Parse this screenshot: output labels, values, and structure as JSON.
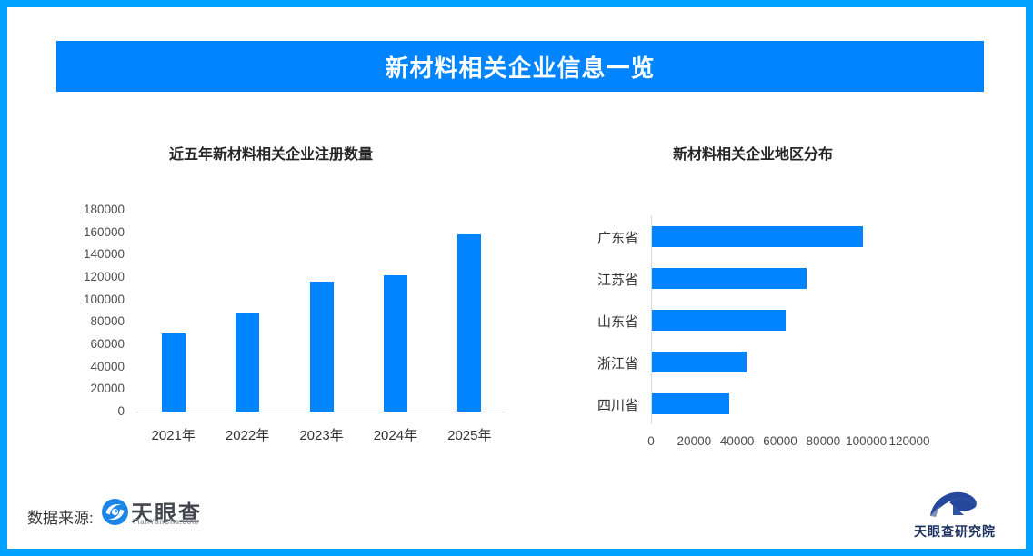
{
  "header": {
    "title": "新材料相关企业信息一览"
  },
  "footer": {
    "source_label": "数据来源:",
    "tianyancha": {
      "name": "天眼查",
      "domain": "TianYanCha.com",
      "icon": "tianyancha-eye-icon"
    },
    "research": {
      "name": "天眼查研究院",
      "icon": "tianyancha-research-icon"
    }
  },
  "colors": {
    "accent_blue": "#0084FF",
    "frame_blue": "#00A2FF",
    "axis_gray": "#D9D9D9",
    "header_text": "#FFFFFF"
  },
  "chart_data": [
    {
      "type": "bar",
      "orientation": "vertical",
      "title": "近五年新材料相关企业注册数量",
      "categories": [
        "2021年",
        "2022年",
        "2023年",
        "2024年",
        "2025年"
      ],
      "values": [
        70000,
        88000,
        116000,
        122000,
        158000
      ],
      "ylim": [
        0,
        180000
      ],
      "ytick_step": 20000,
      "grid": false,
      "legend": null,
      "bar_color": "#0084FF"
    },
    {
      "type": "bar",
      "orientation": "horizontal",
      "title": "新材料相关企业地区分布",
      "categories": [
        "广东省",
        "江苏省",
        "山东省",
        "浙江省",
        "四川省"
      ],
      "values": [
        98000,
        72000,
        62000,
        44000,
        36000
      ],
      "xlim": [
        0,
        120000
      ],
      "xtick_step": 20000,
      "grid": false,
      "legend": null,
      "bar_color": "#0084FF"
    }
  ]
}
